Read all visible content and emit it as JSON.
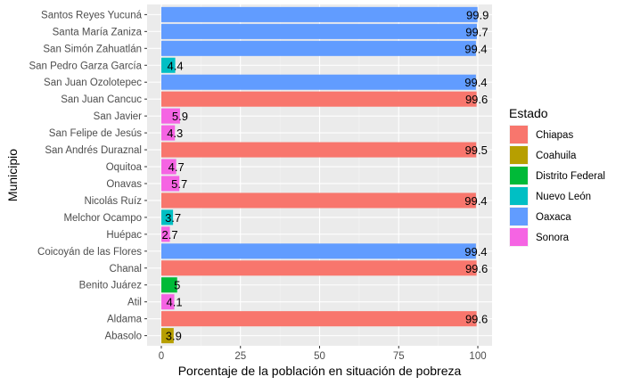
{
  "chart_data": {
    "type": "bar",
    "orientation": "horizontal",
    "title": "",
    "xlabel": "Porcentaje de la población en situación de pobreza",
    "ylabel": "Municipio",
    "xlim": [
      -4.5,
      104.5
    ],
    "xticks": [
      0,
      25,
      50,
      75,
      100
    ],
    "grid": true,
    "legend_position": "right",
    "legend": {
      "title": "Estado",
      "entries": [
        {
          "name": "Chiapas",
          "color": "#F8766D"
        },
        {
          "name": "Coahuila",
          "color": "#B79F00"
        },
        {
          "name": "Distrito Federal",
          "color": "#00BA38"
        },
        {
          "name": "Nuevo León",
          "color": "#00BFC4"
        },
        {
          "name": "Oaxaca",
          "color": "#619CFF"
        },
        {
          "name": "Sonora",
          "color": "#F564E3"
        }
      ]
    },
    "bars": [
      {
        "category": "Santos Reyes Yucuná",
        "value": 99.9,
        "label": "99.9",
        "estado": "Oaxaca"
      },
      {
        "category": "Santa María Zaniza",
        "value": 99.7,
        "label": "99.7",
        "estado": "Oaxaca"
      },
      {
        "category": "San Simón Zahuatlán",
        "value": 99.4,
        "label": "99.4",
        "estado": "Oaxaca"
      },
      {
        "category": "San Pedro Garza García",
        "value": 4.4,
        "label": "4.4",
        "estado": "Nuevo León"
      },
      {
        "category": "San Juan Ozolotepec",
        "value": 99.4,
        "label": "99.4",
        "estado": "Oaxaca"
      },
      {
        "category": "San Juan Cancuc",
        "value": 99.6,
        "label": "99.6",
        "estado": "Chiapas"
      },
      {
        "category": "San Javier",
        "value": 5.9,
        "label": "5.9",
        "estado": "Sonora"
      },
      {
        "category": "San Felipe de Jesús",
        "value": 4.3,
        "label": "4.3",
        "estado": "Sonora"
      },
      {
        "category": "San Andrés Duraznal",
        "value": 99.5,
        "label": "99.5",
        "estado": "Chiapas"
      },
      {
        "category": "Oquitoa",
        "value": 4.7,
        "label": "4.7",
        "estado": "Sonora"
      },
      {
        "category": "Onavas",
        "value": 5.7,
        "label": "5.7",
        "estado": "Sonora"
      },
      {
        "category": "Nicolás Ruíz",
        "value": 99.4,
        "label": "99.4",
        "estado": "Chiapas"
      },
      {
        "category": "Melchor Ocampo",
        "value": 3.7,
        "label": "3.7",
        "estado": "Nuevo León"
      },
      {
        "category": "Huépac",
        "value": 2.7,
        "label": "2.7",
        "estado": "Sonora"
      },
      {
        "category": "Coicoyán de las Flores",
        "value": 99.4,
        "label": "99.4",
        "estado": "Oaxaca"
      },
      {
        "category": "Chanal",
        "value": 99.6,
        "label": "99.6",
        "estado": "Chiapas"
      },
      {
        "category": "Benito Juárez",
        "value": 5,
        "label": "5",
        "estado": "Distrito Federal"
      },
      {
        "category": "Atil",
        "value": 4.1,
        "label": "4.1",
        "estado": "Sonora"
      },
      {
        "category": "Aldama",
        "value": 99.6,
        "label": "99.6",
        "estado": "Chiapas"
      },
      {
        "category": "Abasolo",
        "value": 3.9,
        "label": "3.9",
        "estado": "Coahuila"
      }
    ]
  }
}
